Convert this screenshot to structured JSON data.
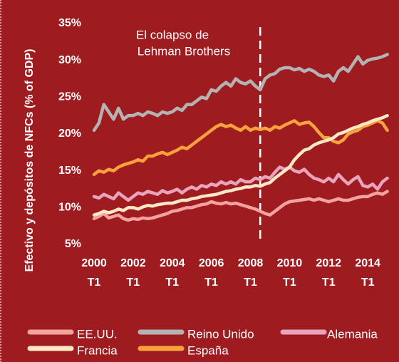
{
  "chart_data": {
    "type": "line",
    "y_label": "Efectivo y depósitos de NFCs (% of GDP)",
    "annotation": [
      "El colapso de",
      "Lehman Brothers"
    ],
    "categories": [
      "2000 T1",
      null,
      null,
      null,
      null,
      null,
      null,
      null,
      "2002 T1",
      null,
      null,
      null,
      null,
      null,
      null,
      null,
      "2004 T1",
      null,
      null,
      null,
      null,
      null,
      null,
      null,
      "2006 T1",
      null,
      null,
      null,
      null,
      null,
      null,
      null,
      "2008 T1",
      null,
      null,
      null,
      null,
      null,
      null,
      null,
      "2010 T1",
      null,
      null,
      null,
      null,
      null,
      null,
      null,
      "2012 T1",
      null,
      null,
      null,
      null,
      null,
      null,
      null,
      "2014 T1",
      null,
      null,
      null,
      null
    ],
    "ylim": [
      5,
      35
    ],
    "yticks": [
      {
        "value": 5,
        "label": "5%"
      },
      {
        "value": 10,
        "label": "10%"
      },
      {
        "value": 15,
        "label": "15%"
      },
      {
        "value": 20,
        "label": "20%"
      },
      {
        "value": 25,
        "label": "25%"
      },
      {
        "value": 30,
        "label": "30%"
      },
      {
        "value": 35,
        "label": "35%"
      }
    ],
    "grid": false,
    "series": [
      {
        "name": "EE.UU.",
        "color": "#f2a3a0",
        "values": [
          8.5,
          8.8,
          9.2,
          8.6,
          8.8,
          9.0,
          8.5,
          8.3,
          8.5,
          8.4,
          8.6,
          8.5,
          8.6,
          8.8,
          9.0,
          9.2,
          9.5,
          9.6,
          9.8,
          10.0,
          10.0,
          10.2,
          10.4,
          10.5,
          10.8,
          10.6,
          10.5,
          10.7,
          10.5,
          10.6,
          10.4,
          10.2,
          10.0,
          9.8,
          9.5,
          9.2,
          9.0,
          9.5,
          10.0,
          10.5,
          10.8,
          10.9,
          11.0,
          11.1,
          11.2,
          11.0,
          11.2,
          11.0,
          10.8,
          11.0,
          11.2,
          11.0,
          11.0,
          11.2,
          11.4,
          11.5,
          11.5,
          11.8,
          12.0,
          11.8,
          12.2
        ]
      },
      {
        "name": "Reino Unido",
        "color": "#b3b3b3",
        "values": [
          20.5,
          21.5,
          24.0,
          23.0,
          22.0,
          23.5,
          22.0,
          22.5,
          22.5,
          22.8,
          22.5,
          23.0,
          22.8,
          22.5,
          23.0,
          22.8,
          23.0,
          23.5,
          23.2,
          24.0,
          24.0,
          24.5,
          25.0,
          24.8,
          26.0,
          25.8,
          26.5,
          27.0,
          26.5,
          27.5,
          27.0,
          26.8,
          27.2,
          26.5,
          26.0,
          27.5,
          28.0,
          28.2,
          28.8,
          29.0,
          29.0,
          28.7,
          28.9,
          28.5,
          28.8,
          28.5,
          28.0,
          27.8,
          28.0,
          27.2,
          28.5,
          29.0,
          28.5,
          29.5,
          30.5,
          29.5,
          30.0,
          30.2,
          30.3,
          30.5,
          30.8
        ]
      },
      {
        "name": "Alemania",
        "color": "#e9a3bd",
        "values": [
          11.5,
          11.3,
          11.8,
          11.5,
          11.2,
          12.0,
          11.5,
          11.0,
          11.5,
          12.0,
          11.8,
          12.2,
          12.0,
          11.8,
          12.3,
          12.0,
          12.2,
          12.5,
          12.0,
          12.5,
          12.8,
          12.5,
          13.0,
          12.8,
          13.2,
          13.0,
          13.5,
          13.2,
          13.5,
          13.2,
          13.8,
          13.5,
          13.5,
          14.0,
          13.8,
          14.2,
          14.0,
          14.8,
          15.5,
          15.2,
          15.5,
          15.0,
          14.8,
          15.2,
          14.5,
          14.0,
          13.8,
          13.5,
          14.0,
          13.5,
          14.5,
          13.8,
          13.2,
          13.8,
          14.2,
          13.0,
          12.8,
          13.2,
          12.5,
          13.5,
          14.0
        ]
      },
      {
        "name": "Francia",
        "color": "#fde8c6",
        "values": [
          9.0,
          9.2,
          9.5,
          9.3,
          9.5,
          9.8,
          9.6,
          10.0,
          10.0,
          9.8,
          10.1,
          10.3,
          10.2,
          10.4,
          10.5,
          10.6,
          10.6,
          10.8,
          11.0,
          11.0,
          11.2,
          11.3,
          11.5,
          11.6,
          11.7,
          11.8,
          12.0,
          12.2,
          12.3,
          12.5,
          12.6,
          12.8,
          12.8,
          13.0,
          12.9,
          13.2,
          13.4,
          14.0,
          14.5,
          15.0,
          15.5,
          16.5,
          17.2,
          17.8,
          18.0,
          18.5,
          18.8,
          19.0,
          19.2,
          19.5,
          20.0,
          20.2,
          20.5,
          20.8,
          21.0,
          21.3,
          21.5,
          21.8,
          22.0,
          22.2,
          22.5
        ]
      },
      {
        "name": "España",
        "color": "#f7a23c",
        "values": [
          14.5,
          15.0,
          14.8,
          15.2,
          15.0,
          15.5,
          15.8,
          16.0,
          16.2,
          16.5,
          16.3,
          17.0,
          17.0,
          17.3,
          17.5,
          17.2,
          17.5,
          17.8,
          18.2,
          18.0,
          18.5,
          19.0,
          19.5,
          20.0,
          20.5,
          21.0,
          21.3,
          21.0,
          21.2,
          20.8,
          20.5,
          21.0,
          20.5,
          20.8,
          20.6,
          20.8,
          20.5,
          21.0,
          20.8,
          21.2,
          21.5,
          21.8,
          21.3,
          21.5,
          21.6,
          21.0,
          20.2,
          19.5,
          19.5,
          19.0,
          18.8,
          19.2,
          20.0,
          20.3,
          20.5,
          21.0,
          21.2,
          21.5,
          21.8,
          21.5,
          20.5
        ]
      }
    ]
  }
}
